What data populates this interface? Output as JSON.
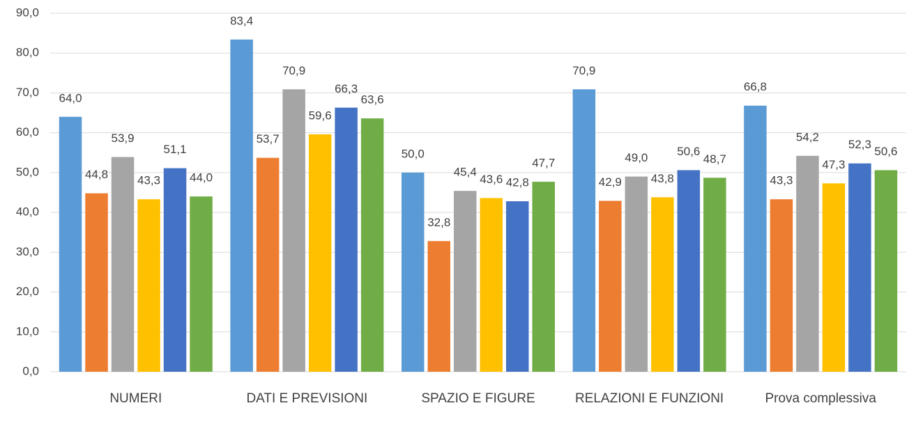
{
  "chart_data": {
    "type": "bar",
    "categories": [
      "NUMERI",
      "DATI E PREVISIONI",
      "SPAZIO E FIGURE",
      "RELAZIONI E FUNZIONI",
      "Prova complessiva"
    ],
    "series": [
      {
        "color": "#5b9bd5",
        "values": [
          64.0,
          83.4,
          50.0,
          70.9,
          66.8
        ],
        "value_labels": [
          "64,0",
          "83,4",
          "50,0",
          "70,9",
          "66,8"
        ]
      },
      {
        "color": "#ed7d31",
        "values": [
          44.8,
          53.7,
          32.8,
          42.9,
          43.3
        ],
        "value_labels": [
          "44,8",
          "53,7",
          "32,8",
          "42,9",
          "43,3"
        ]
      },
      {
        "color": "#a5a5a5",
        "values": [
          53.9,
          70.9,
          45.4,
          49.0,
          54.2
        ],
        "value_labels": [
          "53,9",
          "70,9",
          "45,4",
          "49,0",
          "54,2"
        ]
      },
      {
        "color": "#ffc000",
        "values": [
          43.3,
          59.6,
          43.6,
          43.8,
          47.3
        ],
        "value_labels": [
          "43,3",
          "59,6",
          "43,6",
          "43,8",
          "47,3"
        ]
      },
      {
        "color": "#4472c4",
        "values": [
          51.1,
          66.3,
          42.8,
          50.6,
          52.3
        ],
        "value_labels": [
          "51,1",
          "66,3",
          "42,8",
          "50,6",
          "52,3"
        ]
      },
      {
        "color": "#70ad47",
        "values": [
          44.0,
          63.6,
          47.7,
          48.7,
          50.6
        ],
        "value_labels": [
          "44,0",
          "63,6",
          "47,7",
          "48,7",
          "50,6"
        ]
      }
    ],
    "ylim": [
      0,
      90
    ],
    "yticks": [
      {
        "value": 0,
        "label": "0,0"
      },
      {
        "value": 10,
        "label": "10,0"
      },
      {
        "value": 20,
        "label": "20,0"
      },
      {
        "value": 30,
        "label": "30,0"
      },
      {
        "value": 40,
        "label": "40,0"
      },
      {
        "value": 50,
        "label": "50,0"
      },
      {
        "value": 60,
        "label": "60,0"
      },
      {
        "value": 70,
        "label": "70,0"
      },
      {
        "value": 80,
        "label": "80,0"
      },
      {
        "value": 90,
        "label": "90,0"
      }
    ],
    "grid": true
  }
}
